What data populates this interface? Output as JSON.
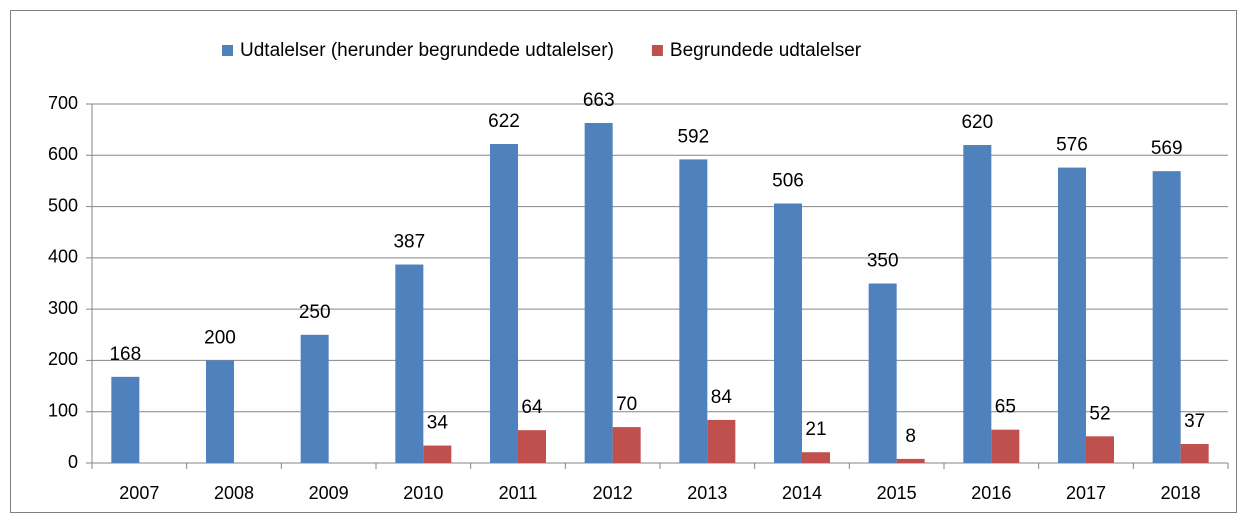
{
  "chart_data": {
    "type": "bar",
    "categories": [
      "2007",
      "2008",
      "2009",
      "2010",
      "2011",
      "2012",
      "2013",
      "2014",
      "2015",
      "2016",
      "2017",
      "2018"
    ],
    "series": [
      {
        "name": "Udtalelser (herunder begrundede udtalelser)",
        "color": "#4f81bd",
        "values": [
          168,
          200,
          250,
          387,
          622,
          663,
          592,
          506,
          350,
          620,
          576,
          569
        ]
      },
      {
        "name": "Begrundede udtalelser",
        "color": "#c0504d",
        "values": [
          null,
          null,
          null,
          34,
          64,
          70,
          84,
          21,
          8,
          65,
          52,
          37
        ]
      }
    ],
    "ylim": [
      0,
      700
    ],
    "yticks": [
      0,
      100,
      200,
      300,
      400,
      500,
      600,
      700
    ],
    "grid": true,
    "legend": "top"
  }
}
